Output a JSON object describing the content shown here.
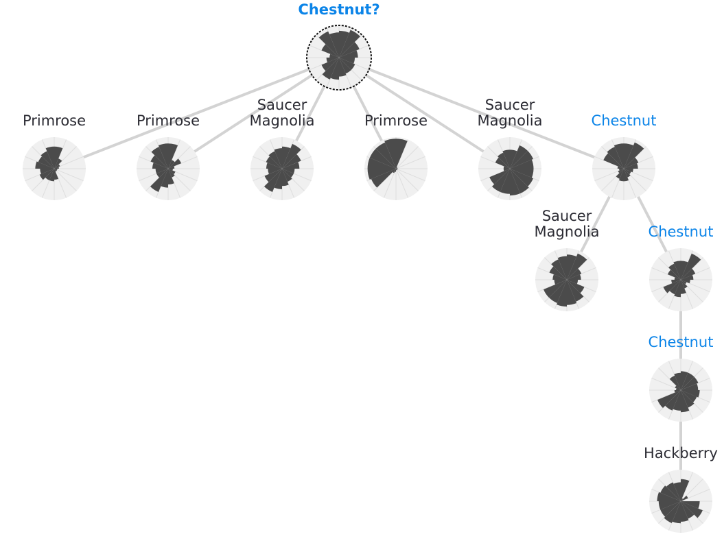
{
  "colors": {
    "edge": "#d3d3d3",
    "disc": "#f0f0f0",
    "spoke": "#dedede",
    "wedge": "#4b4b4b",
    "label": "#2b2b33",
    "highlight": "#0b84e8",
    "query_ring": "#111111"
  },
  "nodes": [
    {
      "id": "root",
      "label": [
        "Chestnut?"
      ],
      "style": "query",
      "parent": null,
      "wedges": [
        0.85,
        0.95,
        0.7,
        0.6,
        0.5,
        0.55,
        0.55,
        0.6,
        0.7,
        0.75,
        0.6,
        0.4,
        0.3,
        0.6,
        0.9,
        0.8
      ]
    },
    {
      "id": "p1",
      "label": [
        "Primrose"
      ],
      "style": "normal",
      "parent": "root",
      "wedges": [
        0.7,
        0.35,
        0.2,
        0.15,
        0.1,
        0.1,
        0.1,
        0.35,
        0.4,
        0.4,
        0.5,
        0.45,
        0.6,
        0.55,
        0.6,
        0.7
      ]
    },
    {
      "id": "p2",
      "label": [
        "Primrose"
      ],
      "style": "normal",
      "parent": "root",
      "wedges": [
        0.8,
        0.3,
        0.45,
        0.2,
        0.15,
        0.25,
        0.3,
        0.5,
        0.6,
        0.8,
        0.4,
        0.4,
        0.5,
        0.6,
        0.75,
        0.8
      ]
    },
    {
      "id": "sm1",
      "label": [
        "Saucer",
        "Magnolia"
      ],
      "style": "normal",
      "parent": "root",
      "wedges": [
        0.7,
        0.85,
        0.65,
        0.55,
        0.4,
        0.4,
        0.45,
        0.55,
        0.65,
        0.8,
        0.6,
        0.45,
        0.5,
        0.55,
        0.6,
        0.65
      ]
    },
    {
      "id": "p3",
      "label": [
        "Primrose"
      ],
      "style": "normal",
      "parent": "root",
      "wedges": [
        0.95,
        0.05,
        0.05,
        0.05,
        0.05,
        0.05,
        0.05,
        0.05,
        0.1,
        0.15,
        0.85,
        0.9,
        0.9,
        0.9,
        0.9,
        0.95
      ]
    },
    {
      "id": "sm2",
      "label": [
        "Saucer",
        "Magnolia"
      ],
      "style": "normal",
      "parent": "root",
      "wedges": [
        0.6,
        0.8,
        0.8,
        0.75,
        0.75,
        0.8,
        0.85,
        0.85,
        0.8,
        0.8,
        0.7,
        0.2,
        0.2,
        0.5,
        0.55,
        0.6
      ]
    },
    {
      "id": "c1",
      "label": [
        "Chestnut"
      ],
      "style": "match",
      "parent": "root",
      "wedges": [
        0.8,
        0.9,
        0.5,
        0.45,
        0.3,
        0.25,
        0.3,
        0.4,
        0.4,
        0.35,
        0.2,
        0.15,
        0.2,
        0.7,
        0.75,
        0.8
      ]
    },
    {
      "id": "sm3",
      "label": [
        "Saucer",
        "Magnolia"
      ],
      "style": "normal",
      "parent": "c1",
      "wedges": [
        0.8,
        0.9,
        0.5,
        0.45,
        0.35,
        0.6,
        0.75,
        0.8,
        0.85,
        0.8,
        0.8,
        0.4,
        0.45,
        0.6,
        0.7,
        0.75
      ]
    },
    {
      "id": "c2",
      "label": [
        "Chestnut"
      ],
      "style": "match",
      "parent": "c1",
      "wedges": [
        0.6,
        0.9,
        0.5,
        0.4,
        0.3,
        0.2,
        0.3,
        0.45,
        0.55,
        0.5,
        0.6,
        0.3,
        0.2,
        0.45,
        0.55,
        0.6
      ]
    },
    {
      "id": "c3",
      "label": [
        "Chestnut"
      ],
      "style": "match",
      "parent": "c2",
      "wedges": [
        0.6,
        0.6,
        0.6,
        0.55,
        0.6,
        0.55,
        0.6,
        0.7,
        0.65,
        0.7,
        0.8,
        0.2,
        0.15,
        0.2,
        0.5,
        0.55
      ]
    },
    {
      "id": "h1",
      "label": [
        "Hackberry"
      ],
      "style": "normal",
      "parent": "c3",
      "wedges": [
        0.7,
        0.1,
        0.25,
        0.05,
        0.6,
        0.75,
        0.6,
        0.65,
        0.7,
        0.75,
        0.7,
        0.7,
        0.75,
        0.7,
        0.65,
        0.6
      ]
    }
  ]
}
